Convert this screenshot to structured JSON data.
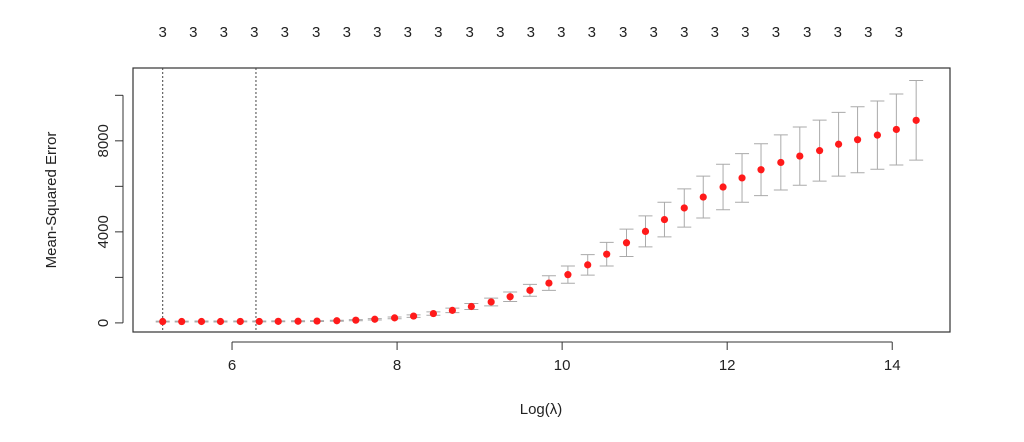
{
  "chart_data": {
    "type": "errorbar",
    "x_label": "Log(λ)",
    "y_label": "Mean-Squared Error",
    "x": [
      5.16,
      5.39,
      5.63,
      5.86,
      6.1,
      6.33,
      6.56,
      6.8,
      7.03,
      7.27,
      7.5,
      7.73,
      7.97,
      8.2,
      8.44,
      8.67,
      8.9,
      9.14,
      9.37,
      9.61,
      9.84,
      10.07,
      10.31,
      10.54,
      10.78,
      11.01,
      11.24,
      11.48,
      11.71,
      11.95,
      12.18,
      12.41,
      12.65,
      12.88,
      13.12,
      13.35,
      13.58,
      13.82,
      14.05,
      14.29
    ],
    "values": [
      60,
      60,
      61,
      62,
      63,
      65,
      68,
      72,
      80,
      95,
      120,
      160,
      220,
      300,
      410,
      550,
      720,
      920,
      1150,
      1430,
      1750,
      2120,
      2550,
      3020,
      3520,
      4020,
      4540,
      5050,
      5530,
      5970,
      6370,
      6730,
      7050,
      7330,
      7570,
      7850,
      8050,
      8250,
      8500,
      8900
    ],
    "errors": [
      20,
      20,
      20,
      20,
      20,
      20,
      20,
      20,
      20,
      20,
      25,
      30,
      40,
      55,
      75,
      100,
      130,
      170,
      210,
      260,
      320,
      380,
      450,
      520,
      600,
      680,
      760,
      840,
      920,
      1000,
      1070,
      1140,
      1210,
      1280,
      1340,
      1400,
      1450,
      1500,
      1560,
      1750
    ],
    "color": "#ff1a1a",
    "error_color": "#aaaaaa",
    "xlim": [
      4.8,
      14.7
    ],
    "ylim": [
      -400,
      11200
    ],
    "xticks": [
      6,
      8,
      10,
      12,
      14
    ],
    "yticks": [
      0,
      4000,
      8000
    ],
    "yminor_ticks": [
      2000,
      6000,
      10000
    ],
    "vlines": [
      5.16,
      6.29
    ],
    "top_ticks": [
      {
        "value": 5.16,
        "label": "3"
      },
      {
        "value": 5.53,
        "label": "3"
      },
      {
        "value": 5.9,
        "label": "3"
      },
      {
        "value": 6.27,
        "label": "3"
      },
      {
        "value": 6.64,
        "label": "3"
      },
      {
        "value": 7.02,
        "label": "3"
      },
      {
        "value": 7.39,
        "label": "3"
      },
      {
        "value": 7.76,
        "label": "3"
      },
      {
        "value": 8.13,
        "label": "3"
      },
      {
        "value": 8.5,
        "label": "3"
      },
      {
        "value": 8.88,
        "label": "3"
      },
      {
        "value": 9.25,
        "label": "3"
      },
      {
        "value": 9.62,
        "label": "3"
      },
      {
        "value": 9.99,
        "label": "3"
      },
      {
        "value": 10.36,
        "label": "3"
      },
      {
        "value": 10.74,
        "label": "3"
      },
      {
        "value": 11.11,
        "label": "3"
      },
      {
        "value": 11.48,
        "label": "3"
      },
      {
        "value": 11.85,
        "label": "3"
      },
      {
        "value": 12.22,
        "label": "3"
      },
      {
        "value": 12.59,
        "label": "3"
      },
      {
        "value": 12.97,
        "label": "3"
      },
      {
        "value": 13.34,
        "label": "3"
      },
      {
        "value": 13.71,
        "label": "3"
      },
      {
        "value": 14.08,
        "label": "3"
      }
    ]
  }
}
